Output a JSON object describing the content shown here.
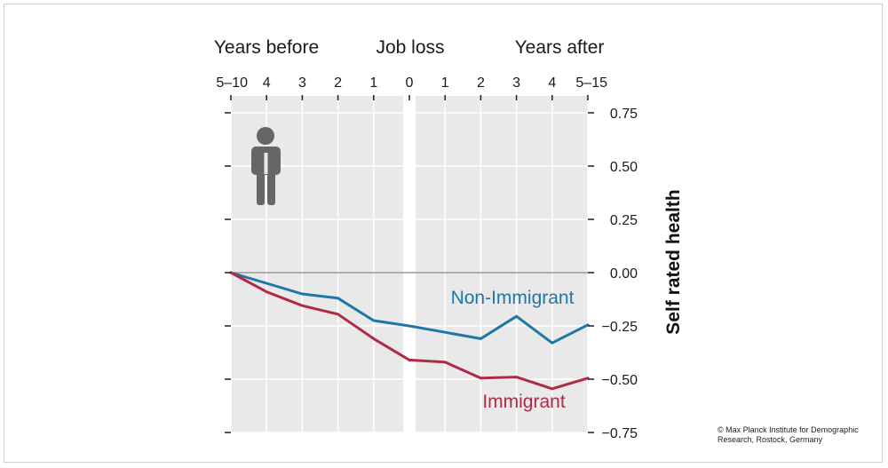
{
  "header": {
    "left": "Years before",
    "center": "Job loss",
    "right": "Years after"
  },
  "credit": {
    "line1": "© Max Planck Institute for Demographic",
    "line2": "Research, Rostock, Germany"
  },
  "chart_data": {
    "type": "line",
    "categories": [
      "5–10",
      "4",
      "3",
      "2",
      "1",
      "0",
      "1",
      "2",
      "3",
      "4",
      "5–15"
    ],
    "ylabel": "Self rated health",
    "ylim": [
      -0.75,
      0.75
    ],
    "yticks": [
      0.75,
      0.5,
      0.25,
      0.0,
      -0.25,
      -0.5,
      -0.75
    ],
    "ytick_labels": [
      "0.75",
      "0.50",
      "0.25",
      "0.00",
      "−0.25",
      "−0.50",
      "−0.75"
    ],
    "series": [
      {
        "name": "Non-Immigrant",
        "color": "#1f77a8",
        "values": [
          0.0,
          -0.05,
          -0.1,
          -0.12,
          -0.225,
          -0.25,
          -0.28,
          -0.31,
          -0.205,
          -0.33,
          -0.245
        ]
      },
      {
        "name": "Immigrant",
        "color": "#b02a46",
        "values": [
          0.0,
          -0.09,
          -0.155,
          -0.195,
          -0.31,
          -0.41,
          -0.42,
          -0.495,
          -0.49,
          -0.545,
          -0.495
        ]
      }
    ],
    "grid": true,
    "zero_line": true,
    "colors": {
      "background_panel": "#e8e9e8",
      "grid": "#ffffff",
      "zero_line": "#9a9a9a",
      "axis": "#1a1a1a",
      "icon": "#666666"
    },
    "icon": "person-icon"
  }
}
